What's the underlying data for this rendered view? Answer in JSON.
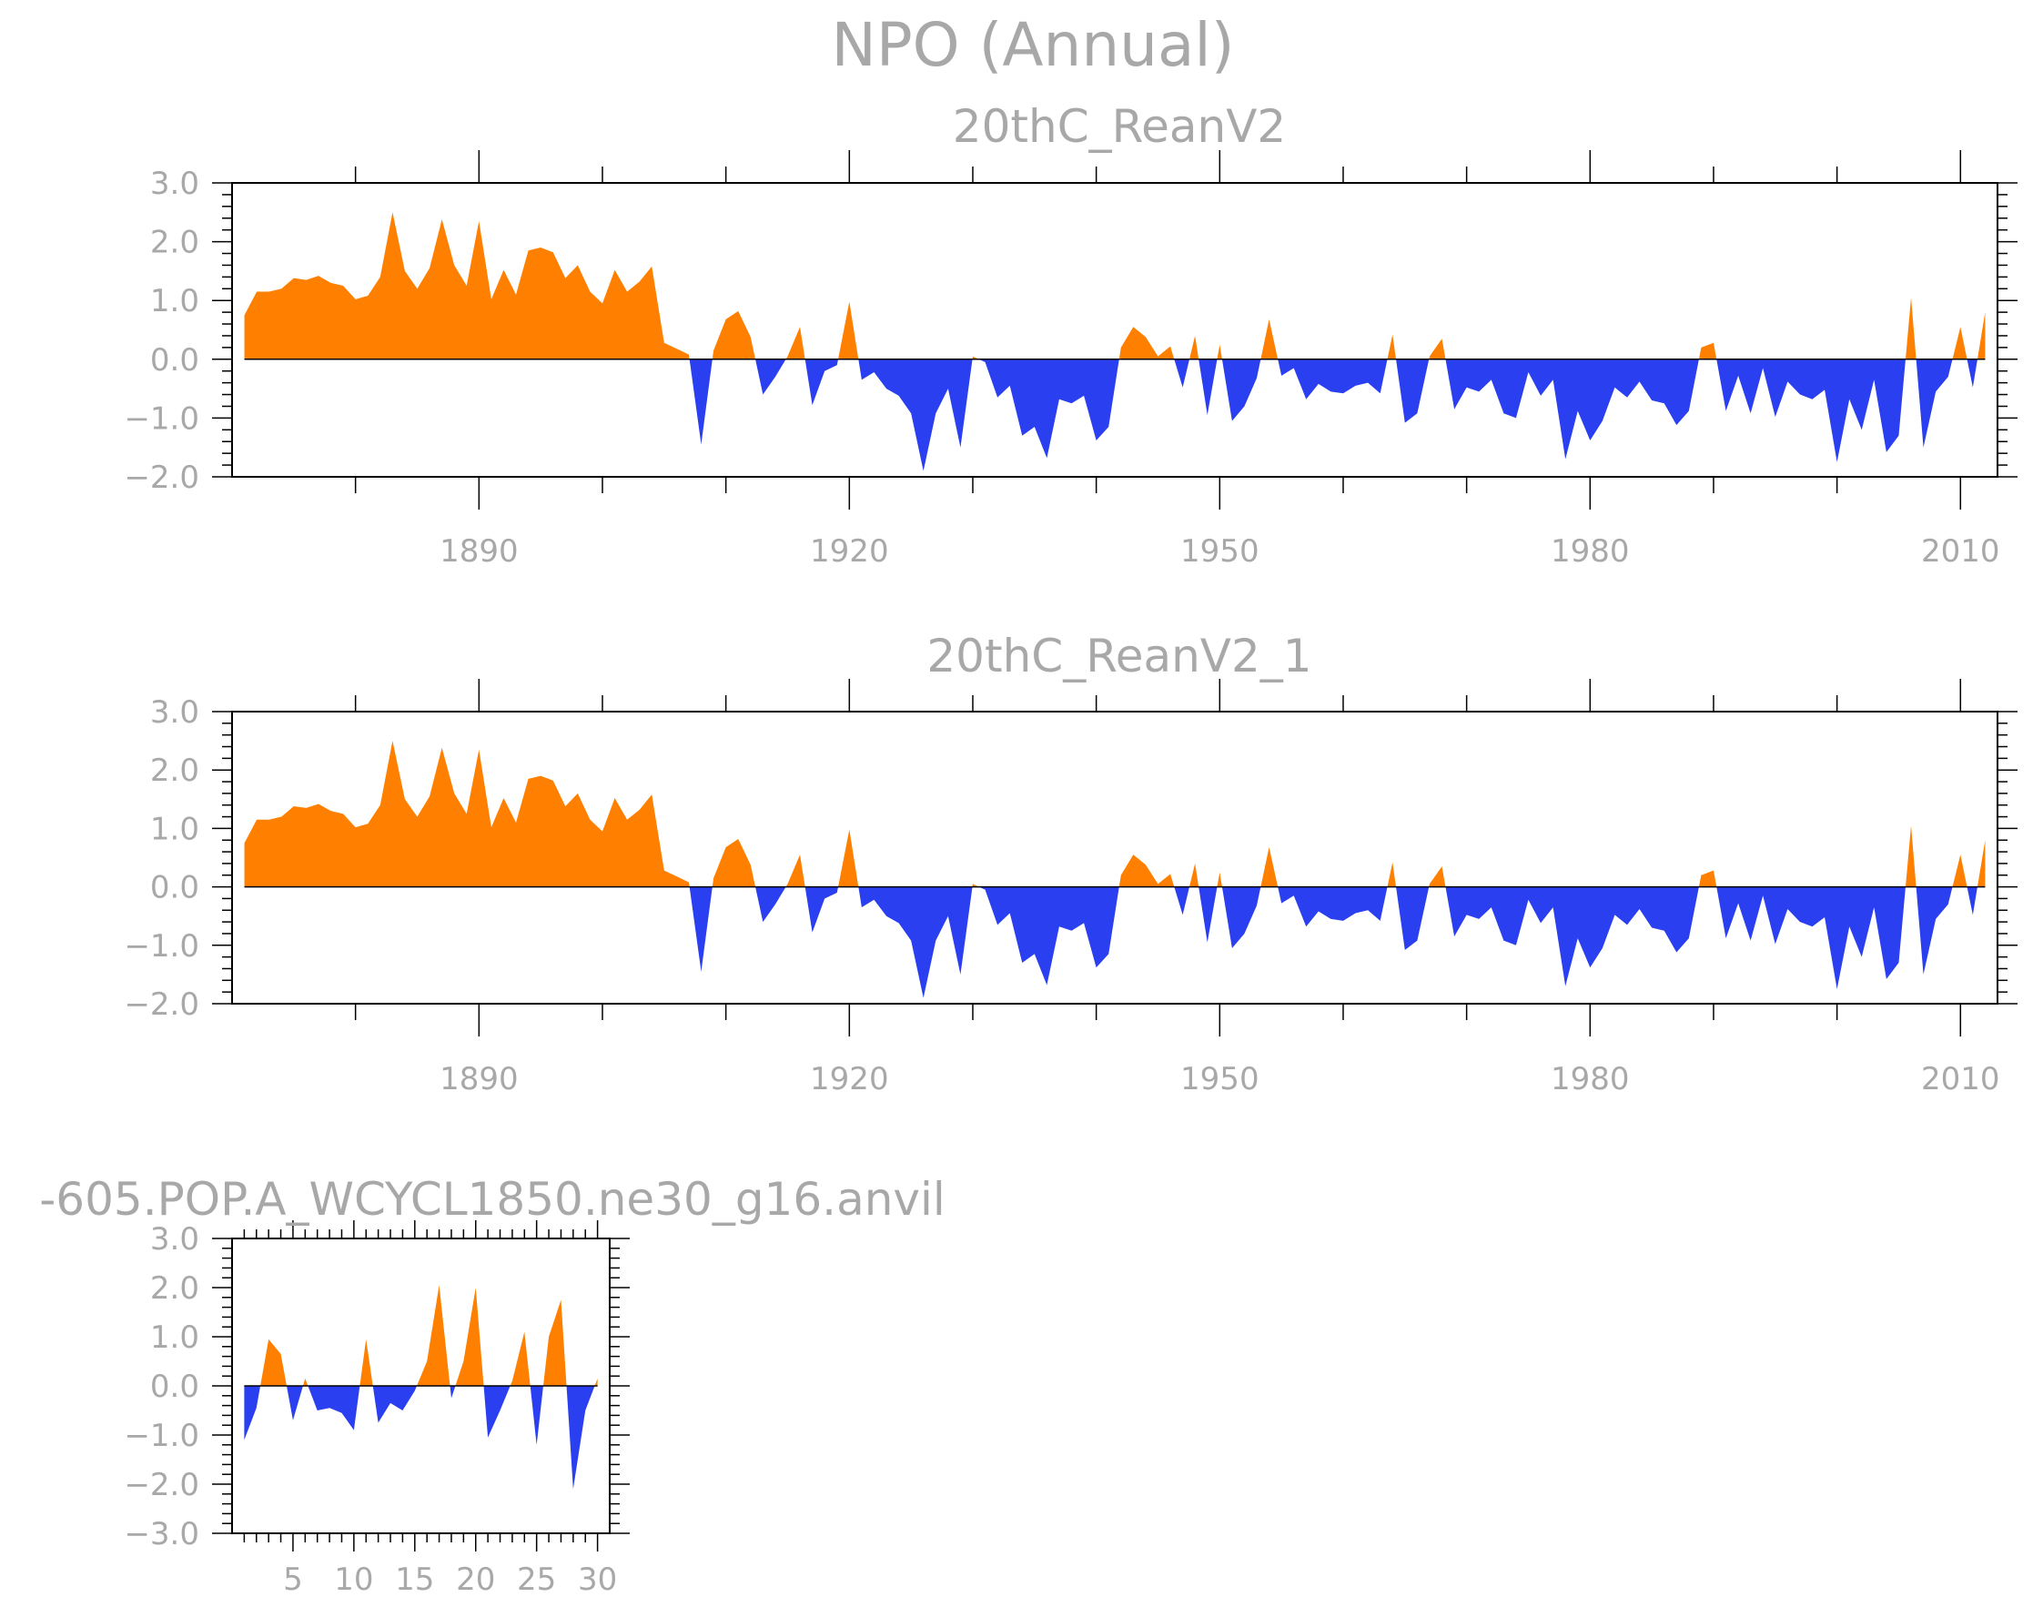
{
  "page_title": "NPO (Annual)",
  "colors": {
    "positive": "#ff8000",
    "negative": "#2a3ff0",
    "axis": "#000000",
    "text": "#a8a8a8"
  },
  "chart_data": [
    {
      "id": "top",
      "type": "area",
      "title": "20thC_ReanV2",
      "xlabel": "",
      "ylabel": "",
      "xlim": [
        1870,
        2013
      ],
      "ylim": [
        -2.0,
        3.0
      ],
      "y_ticks": [
        -2.0,
        -1.0,
        0.0,
        1.0,
        2.0,
        3.0
      ],
      "y_tick_labels": [
        "−2.0",
        "−1.0",
        "0.0",
        "1.0",
        "2.0",
        "3.0"
      ],
      "x_ticks": [
        1890,
        1920,
        1950,
        1980,
        2010
      ],
      "x_tick_labels": [
        "1890",
        "1920",
        "1950",
        "1980",
        "2010"
      ],
      "x": [
        1871,
        1872,
        1873,
        1874,
        1875,
        1876,
        1877,
        1878,
        1879,
        1880,
        1881,
        1882,
        1883,
        1884,
        1885,
        1886,
        1887,
        1888,
        1889,
        1890,
        1891,
        1892,
        1893,
        1894,
        1895,
        1896,
        1897,
        1898,
        1899,
        1900,
        1901,
        1902,
        1903,
        1904,
        1905,
        1906,
        1907,
        1908,
        1909,
        1910,
        1911,
        1912,
        1913,
        1914,
        1915,
        1916,
        1917,
        1918,
        1919,
        1920,
        1921,
        1922,
        1923,
        1924,
        1925,
        1926,
        1927,
        1928,
        1929,
        1930,
        1931,
        1932,
        1933,
        1934,
        1935,
        1936,
        1937,
        1938,
        1939,
        1940,
        1941,
        1942,
        1943,
        1944,
        1945,
        1946,
        1947,
        1948,
        1949,
        1950,
        1951,
        1952,
        1953,
        1954,
        1955,
        1956,
        1957,
        1958,
        1959,
        1960,
        1961,
        1962,
        1963,
        1964,
        1965,
        1966,
        1967,
        1968,
        1969,
        1970,
        1971,
        1972,
        1973,
        1974,
        1975,
        1976,
        1977,
        1978,
        1979,
        1980,
        1981,
        1982,
        1983,
        1984,
        1985,
        1986,
        1987,
        1988,
        1989,
        1990,
        1991,
        1992,
        1993,
        1994,
        1995,
        1996,
        1997,
        1998,
        1999,
        2000,
        2001,
        2002,
        2003,
        2004,
        2005,
        2006,
        2007,
        2008,
        2009,
        2010,
        2011,
        2012
      ],
      "values": [
        0.75,
        1.15,
        1.15,
        1.2,
        1.38,
        1.35,
        1.42,
        1.3,
        1.25,
        1.02,
        1.08,
        1.4,
        2.5,
        1.5,
        1.2,
        1.55,
        2.38,
        1.6,
        1.25,
        2.35,
        1.02,
        1.52,
        1.1,
        1.85,
        1.9,
        1.82,
        1.38,
        1.6,
        1.15,
        0.95,
        1.52,
        1.15,
        1.32,
        1.58,
        0.28,
        0.18,
        0.08,
        -1.45,
        0.15,
        0.68,
        0.82,
        0.38,
        -0.6,
        -0.3,
        0.05,
        0.55,
        -0.78,
        -0.2,
        -0.1,
        0.98,
        -0.35,
        -0.22,
        -0.5,
        -0.62,
        -0.92,
        -1.9,
        -0.92,
        -0.5,
        -1.5,
        0.05,
        -0.05,
        -0.65,
        -0.45,
        -1.3,
        -1.15,
        -1.68,
        -0.68,
        -0.75,
        -0.62,
        -1.38,
        -1.15,
        0.2,
        0.55,
        0.38,
        0.05,
        0.22,
        -0.48,
        0.4,
        -0.95,
        0.25,
        -1.05,
        -0.8,
        -0.32,
        0.68,
        -0.28,
        -0.15,
        -0.68,
        -0.42,
        -0.55,
        -0.58,
        -0.45,
        -0.4,
        -0.58,
        0.42,
        -1.08,
        -0.92,
        0.05,
        0.35,
        -0.85,
        -0.48,
        -0.55,
        -0.35,
        -0.92,
        -1.0,
        -0.22,
        -0.62,
        -0.35,
        -1.7,
        -0.88,
        -1.38,
        -1.05,
        -0.48,
        -0.65,
        -0.38,
        -0.7,
        -0.75,
        -1.12,
        -0.88,
        0.2,
        0.28,
        -0.88,
        -0.28,
        -0.92,
        -0.15,
        -0.98,
        -0.38,
        -0.6,
        -0.68,
        -0.52,
        -1.75,
        -0.68,
        -1.2,
        -0.35,
        -1.58,
        -1.3,
        1.05,
        -1.5,
        -0.55,
        -0.3,
        0.55,
        -0.48,
        0.8
      ]
    },
    {
      "id": "middle",
      "type": "area",
      "title": "20thC_ReanV2_1",
      "xlabel": "",
      "ylabel": "",
      "xlim": [
        1870,
        2013
      ],
      "ylim": [
        -2.0,
        3.0
      ],
      "y_ticks": [
        -2.0,
        -1.0,
        0.0,
        1.0,
        2.0,
        3.0
      ],
      "y_tick_labels": [
        "−2.0",
        "−1.0",
        "0.0",
        "1.0",
        "2.0",
        "3.0"
      ],
      "x_ticks": [
        1890,
        1920,
        1950,
        1980,
        2010
      ],
      "x_tick_labels": [
        "1890",
        "1920",
        "1950",
        "1980",
        "2010"
      ],
      "x": [
        1871,
        1872,
        1873,
        1874,
        1875,
        1876,
        1877,
        1878,
        1879,
        1880,
        1881,
        1882,
        1883,
        1884,
        1885,
        1886,
        1887,
        1888,
        1889,
        1890,
        1891,
        1892,
        1893,
        1894,
        1895,
        1896,
        1897,
        1898,
        1899,
        1900,
        1901,
        1902,
        1903,
        1904,
        1905,
        1906,
        1907,
        1908,
        1909,
        1910,
        1911,
        1912,
        1913,
        1914,
        1915,
        1916,
        1917,
        1918,
        1919,
        1920,
        1921,
        1922,
        1923,
        1924,
        1925,
        1926,
        1927,
        1928,
        1929,
        1930,
        1931,
        1932,
        1933,
        1934,
        1935,
        1936,
        1937,
        1938,
        1939,
        1940,
        1941,
        1942,
        1943,
        1944,
        1945,
        1946,
        1947,
        1948,
        1949,
        1950,
        1951,
        1952,
        1953,
        1954,
        1955,
        1956,
        1957,
        1958,
        1959,
        1960,
        1961,
        1962,
        1963,
        1964,
        1965,
        1966,
        1967,
        1968,
        1969,
        1970,
        1971,
        1972,
        1973,
        1974,
        1975,
        1976,
        1977,
        1978,
        1979,
        1980,
        1981,
        1982,
        1983,
        1984,
        1985,
        1986,
        1987,
        1988,
        1989,
        1990,
        1991,
        1992,
        1993,
        1994,
        1995,
        1996,
        1997,
        1998,
        1999,
        2000,
        2001,
        2002,
        2003,
        2004,
        2005,
        2006,
        2007,
        2008,
        2009,
        2010,
        2011,
        2012
      ],
      "values": [
        0.75,
        1.15,
        1.15,
        1.2,
        1.38,
        1.35,
        1.42,
        1.3,
        1.25,
        1.02,
        1.08,
        1.4,
        2.5,
        1.5,
        1.2,
        1.55,
        2.38,
        1.6,
        1.25,
        2.35,
        1.02,
        1.52,
        1.1,
        1.85,
        1.9,
        1.82,
        1.38,
        1.6,
        1.15,
        0.95,
        1.52,
        1.15,
        1.32,
        1.58,
        0.28,
        0.18,
        0.08,
        -1.45,
        0.15,
        0.68,
        0.82,
        0.38,
        -0.6,
        -0.3,
        0.05,
        0.55,
        -0.78,
        -0.2,
        -0.1,
        0.98,
        -0.35,
        -0.22,
        -0.5,
        -0.62,
        -0.92,
        -1.9,
        -0.92,
        -0.5,
        -1.5,
        0.05,
        -0.05,
        -0.65,
        -0.45,
        -1.3,
        -1.15,
        -1.68,
        -0.68,
        -0.75,
        -0.62,
        -1.38,
        -1.15,
        0.2,
        0.55,
        0.38,
        0.05,
        0.22,
        -0.48,
        0.4,
        -0.95,
        0.25,
        -1.05,
        -0.8,
        -0.32,
        0.68,
        -0.28,
        -0.15,
        -0.68,
        -0.42,
        -0.55,
        -0.58,
        -0.45,
        -0.4,
        -0.58,
        0.42,
        -1.08,
        -0.92,
        0.05,
        0.35,
        -0.85,
        -0.48,
        -0.55,
        -0.35,
        -0.92,
        -1.0,
        -0.22,
        -0.62,
        -0.35,
        -1.7,
        -0.88,
        -1.38,
        -1.05,
        -0.48,
        -0.65,
        -0.38,
        -0.7,
        -0.75,
        -1.12,
        -0.88,
        0.2,
        0.28,
        -0.88,
        -0.28,
        -0.92,
        -0.15,
        -0.98,
        -0.38,
        -0.6,
        -0.68,
        -0.52,
        -1.75,
        -0.68,
        -1.2,
        -0.35,
        -1.58,
        -1.3,
        1.05,
        -1.5,
        -0.55,
        -0.3,
        0.55,
        -0.48,
        0.8
      ]
    },
    {
      "id": "bottom",
      "type": "area",
      "title": "‑605.POP.A_WCYCL1850.ne30_g16.anvil",
      "xlabel": "",
      "ylabel": "",
      "xlim": [
        0,
        31
      ],
      "ylim": [
        -3.0,
        3.0
      ],
      "y_ticks": [
        -3.0,
        -2.0,
        -1.0,
        0.0,
        1.0,
        2.0,
        3.0
      ],
      "y_tick_labels": [
        "−3.0",
        "−2.0",
        "−1.0",
        "0.0",
        "1.0",
        "2.0",
        "3.0"
      ],
      "x_ticks": [
        5,
        10,
        15,
        20,
        25,
        30
      ],
      "x_tick_labels": [
        "5",
        "10",
        "15",
        "20",
        "25",
        "30"
      ],
      "x": [
        1,
        2,
        3,
        4,
        5,
        6,
        7,
        8,
        9,
        10,
        11,
        12,
        13,
        14,
        15,
        16,
        17,
        18,
        19,
        20,
        21,
        22,
        23,
        24,
        25,
        26,
        27,
        28,
        29,
        30
      ],
      "values": [
        -1.1,
        -0.45,
        0.95,
        0.65,
        -0.7,
        0.15,
        -0.5,
        -0.45,
        -0.55,
        -0.9,
        0.95,
        -0.75,
        -0.35,
        -0.5,
        -0.1,
        0.5,
        2.05,
        -0.25,
        0.5,
        2.0,
        -1.05,
        -0.5,
        0.1,
        1.1,
        -1.2,
        1.0,
        1.75,
        -2.1,
        -0.5,
        0.15
      ]
    }
  ]
}
